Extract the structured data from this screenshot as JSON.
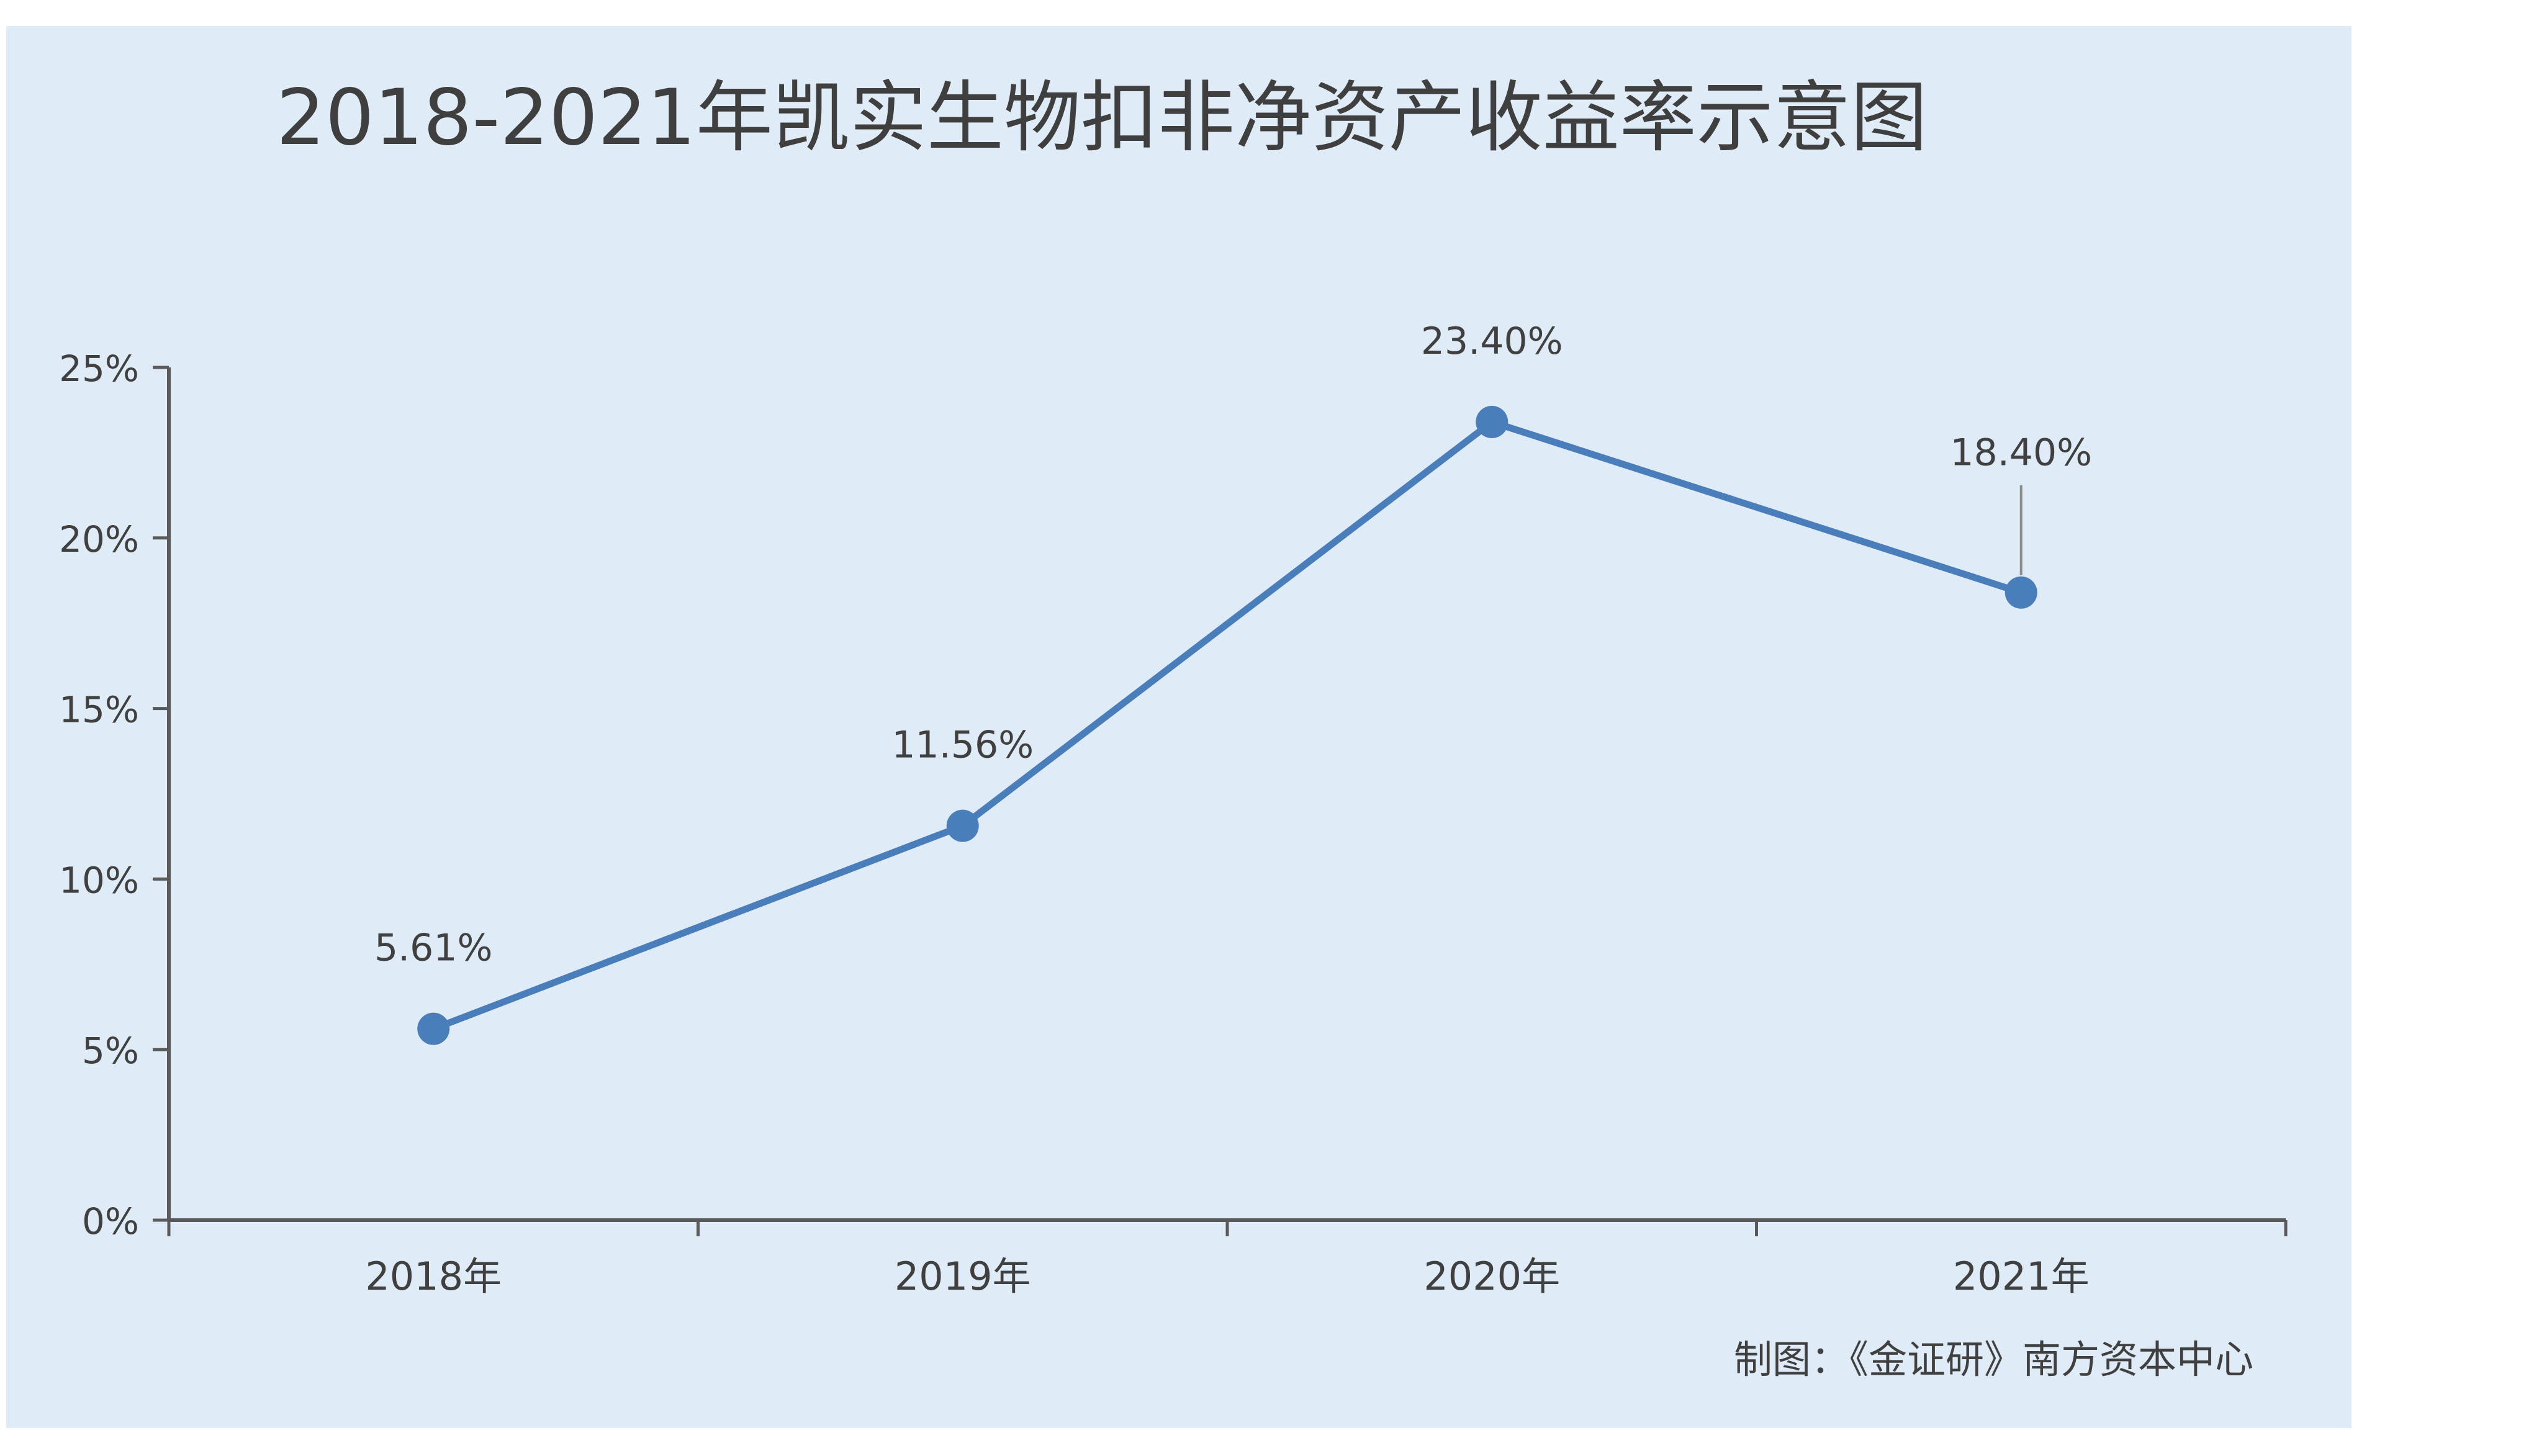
{
  "chart_data": {
    "type": "line",
    "title": "2018-2021年凯实生物扣非净资产收益率示意图",
    "categories": [
      "2018年",
      "2019年",
      "2020年",
      "2021年"
    ],
    "series": [
      {
        "values": [
          5.61,
          11.56,
          23.4,
          18.4
        ],
        "data_labels": [
          "5.61%",
          "11.56%",
          "23.40%",
          "18.40%"
        ],
        "color": "#4a7ebb"
      }
    ],
    "y_ticks": [
      "0%",
      "5%",
      "10%",
      "15%",
      "20%",
      "25%"
    ],
    "ylim": [
      0,
      25
    ],
    "grid": false,
    "source": "制图：《金证研》南方资本中心",
    "background_color": "#dfebf6",
    "axis_color": "#5a5a5a",
    "text_color": "#404040",
    "title_color": "#3f3f3f"
  }
}
